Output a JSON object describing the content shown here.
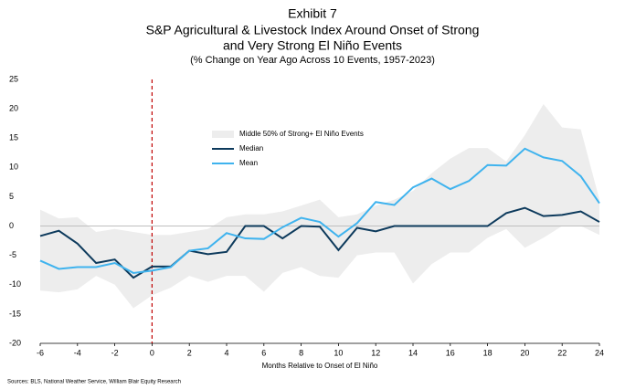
{
  "chart_data": {
    "type": "line",
    "title": "Exhibit 7",
    "subtitle": [
      "S&P Agricultural & Livestock Index Around Onset of Strong",
      "and Very Strong El Niño Events"
    ],
    "note": "(% Change on Year Ago Across 10 Events, 1957-2023)",
    "x_label": "Months Relative to Onset of El Niño",
    "source": "Sources: BLS, National Weather Service, William Blair Equity Research",
    "x": [
      -6,
      -5,
      -4,
      -3,
      -2,
      -1,
      0,
      1,
      2,
      3,
      4,
      5,
      6,
      7,
      8,
      9,
      10,
      11,
      12,
      13,
      14,
      15,
      16,
      17,
      18,
      19,
      20,
      21,
      22,
      23,
      24
    ],
    "band": {
      "name": "Middle 50% of Strong+ El Niño Events",
      "color": "#ededed",
      "high": [
        2.8,
        1.3,
        1.5,
        -1,
        -0.5,
        -1,
        -1.5,
        -1.5,
        -1,
        -0.5,
        1.5,
        2,
        2,
        2.5,
        3.5,
        4.5,
        1.5,
        2,
        3.5,
        4.5,
        6,
        9,
        11.5,
        13.3,
        13.3,
        11,
        15.5,
        20.8,
        16.8,
        16.5,
        4.5
      ],
      "low": [
        -11,
        -11.3,
        -10.8,
        -8.5,
        -10,
        -14,
        -11.8,
        -10.5,
        -8.5,
        -9.5,
        -8.5,
        -8.5,
        -11.2,
        -8,
        -7,
        -8.5,
        -8.8,
        -5,
        -4.5,
        -4.5,
        -9.8,
        -6.5,
        -4.5,
        -4.5,
        -2,
        -0.5,
        -3.7,
        -2,
        0,
        0,
        -1.5
      ]
    },
    "series": [
      {
        "name": "Median",
        "color": "#0d3a5c",
        "values": [
          -1.7,
          -0.8,
          -3,
          -6.3,
          -5.7,
          -8.8,
          -6.9,
          -6.9,
          -4.2,
          -4.8,
          -4.4,
          0,
          0,
          -2.1,
          0,
          -0.1,
          -4.1,
          -0.3,
          -0.9,
          0,
          0,
          0,
          0,
          0,
          0,
          2.2,
          3.1,
          1.7,
          1.9,
          2.5,
          0.7
        ]
      },
      {
        "name": "Mean",
        "color": "#3fb3ee",
        "values": [
          -5.9,
          -7.3,
          -7,
          -7,
          -6.3,
          -8,
          -7.6,
          -7,
          -4.2,
          -3.8,
          -1.2,
          -2.1,
          -2.2,
          -0.2,
          1.4,
          0.7,
          -1.8,
          0.5,
          4.1,
          3.6,
          6.6,
          8.1,
          6.3,
          7.7,
          10.4,
          10.3,
          13.2,
          11.7,
          11.1,
          8.5,
          3.9
        ]
      }
    ],
    "vline": {
      "x": 0,
      "color": "#c00000"
    },
    "xlim": [
      -6,
      24
    ],
    "xticks": [
      -6,
      -4,
      -2,
      0,
      2,
      4,
      6,
      8,
      10,
      12,
      14,
      16,
      18,
      20,
      22,
      24
    ],
    "ylim": [
      -20,
      25
    ],
    "yticks": [
      -20,
      -15,
      -10,
      -5,
      0,
      5,
      10,
      15,
      20,
      25
    ]
  }
}
